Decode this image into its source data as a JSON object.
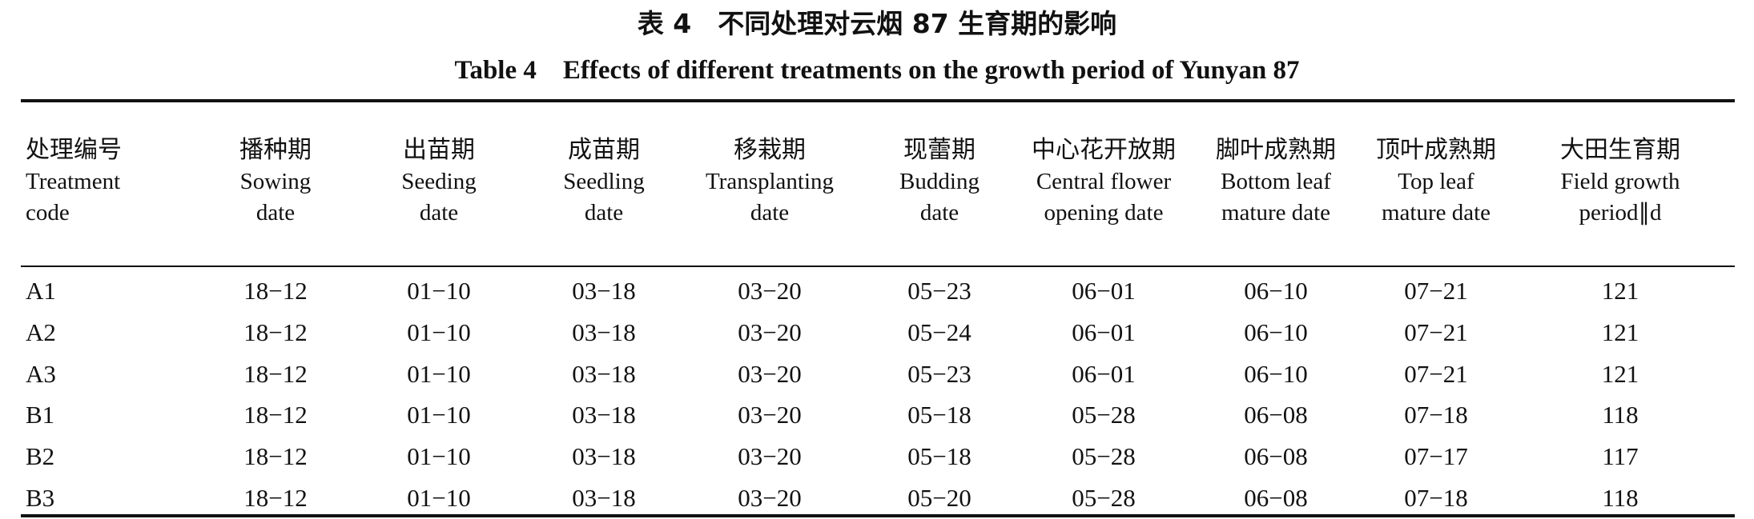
{
  "caption": {
    "cn": "表 4　不同处理对云烟 87 生育期的影响",
    "en": "Table 4　Effects of different treatments on the growth period of Yunyan 87"
  },
  "table": {
    "headers": [
      {
        "cn": "处理编号",
        "en1": "Treatment",
        "en2": "code"
      },
      {
        "cn": "播种期",
        "en1": "Sowing",
        "en2": "date"
      },
      {
        "cn": "出苗期",
        "en1": "Seeding",
        "en2": "date"
      },
      {
        "cn": "成苗期",
        "en1": "Seedling",
        "en2": "date"
      },
      {
        "cn": "移栽期",
        "en1": "Transplanting",
        "en2": "date"
      },
      {
        "cn": "现蕾期",
        "en1": "Budding",
        "en2": "date"
      },
      {
        "cn": "中心花开放期",
        "en1": "Central flower",
        "en2": "opening date"
      },
      {
        "cn": "脚叶成熟期",
        "en1": "Bottom leaf",
        "en2": "mature date"
      },
      {
        "cn": "顶叶成熟期",
        "en1": "Top leaf",
        "en2": "mature date"
      },
      {
        "cn": "大田生育期",
        "en1": "Field growth",
        "en2": "period∥d"
      }
    ],
    "rows": [
      [
        "A1",
        "18−12",
        "01−10",
        "03−18",
        "03−20",
        "05−23",
        "06−01",
        "06−10",
        "07−21",
        "121"
      ],
      [
        "A2",
        "18−12",
        "01−10",
        "03−18",
        "03−20",
        "05−24",
        "06−01",
        "06−10",
        "07−21",
        "121"
      ],
      [
        "A3",
        "18−12",
        "01−10",
        "03−18",
        "03−20",
        "05−23",
        "06−01",
        "06−10",
        "07−21",
        "121"
      ],
      [
        "B1",
        "18−12",
        "01−10",
        "03−18",
        "03−20",
        "05−18",
        "05−28",
        "06−08",
        "07−18",
        "118"
      ],
      [
        "B2",
        "18−12",
        "01−10",
        "03−18",
        "03−20",
        "05−18",
        "05−28",
        "06−08",
        "07−17",
        "117"
      ],
      [
        "B3",
        "18−12",
        "01−10",
        "03−18",
        "03−20",
        "05−20",
        "05−28",
        "06−08",
        "07−18",
        "118"
      ]
    ]
  }
}
